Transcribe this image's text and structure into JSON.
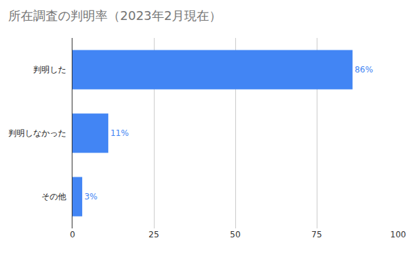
{
  "chart_data": {
    "type": "bar",
    "title": "所在調査の判明率（2023年2月現在）",
    "orientation": "horizontal",
    "categories": [
      "判明した",
      "判明しなかった",
      "その他"
    ],
    "values": [
      86,
      11,
      3
    ],
    "value_labels": [
      "86%",
      "11%",
      "3%"
    ],
    "data_labels": true,
    "color": "#4285f4",
    "xlim": [
      0,
      100
    ],
    "xticks": [
      0,
      25,
      50,
      75,
      100
    ],
    "grid": true
  }
}
